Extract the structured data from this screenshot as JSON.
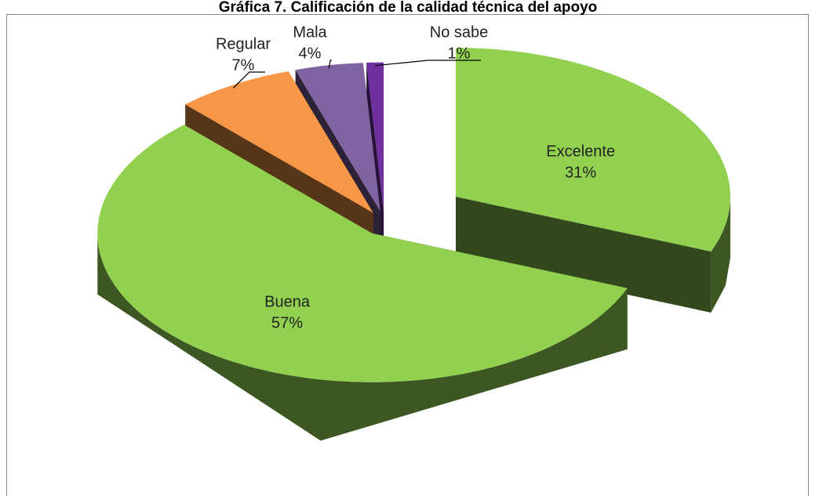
{
  "chart_data": {
    "type": "pie3d",
    "title": "Gráfica 7. Calificación de la calidad técnica del apoyo",
    "categories": [
      "Excelente",
      "Buena",
      "Regular",
      "Mala",
      "No sabe"
    ],
    "values": [
      31,
      57,
      7,
      4,
      1
    ],
    "value_labels": [
      "31%",
      "57%",
      "7%",
      "4%",
      "1%"
    ],
    "colors": [
      "#92d050",
      "#92d050",
      "#f79646",
      "#8064a2",
      "#7030a0"
    ]
  }
}
